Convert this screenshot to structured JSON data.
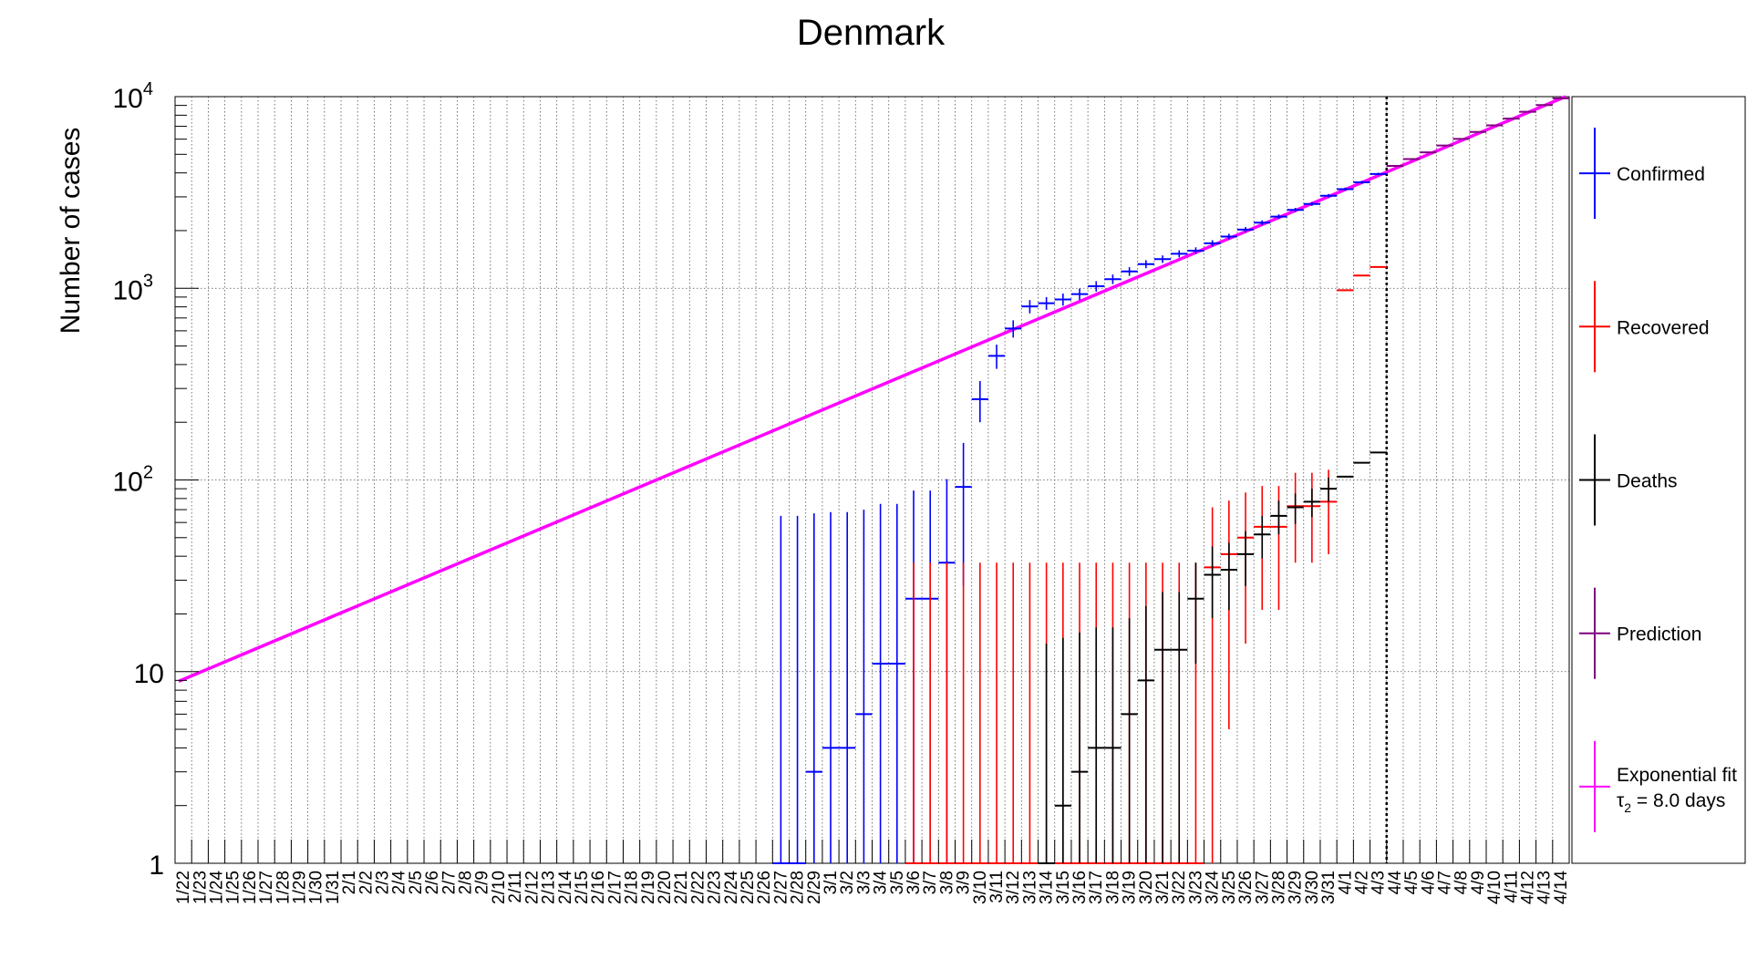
{
  "chart_data": {
    "type": "scatter",
    "title": "Denmark",
    "xlabel": "",
    "ylabel": "Number of cases",
    "y_scale": "log",
    "ylim": [
      1,
      10000
    ],
    "y_tick_labels": [
      {
        "value": 1,
        "label": "1"
      },
      {
        "value": 10,
        "label": "10"
      },
      {
        "value": 100,
        "label": "10",
        "exp": "2"
      },
      {
        "value": 1000,
        "label": "10",
        "exp": "3"
      },
      {
        "value": 10000,
        "label": "10",
        "exp": "4"
      }
    ],
    "grid": true,
    "legend_position": "right",
    "categories": [
      "1/22",
      "1/23",
      "1/24",
      "1/25",
      "1/26",
      "1/27",
      "1/28",
      "1/29",
      "1/30",
      "1/31",
      "2/1",
      "2/2",
      "2/3",
      "2/4",
      "2/5",
      "2/6",
      "2/7",
      "2/8",
      "2/9",
      "2/10",
      "2/11",
      "2/12",
      "2/13",
      "2/14",
      "2/15",
      "2/16",
      "2/17",
      "2/18",
      "2/19",
      "2/20",
      "2/21",
      "2/22",
      "2/23",
      "2/24",
      "2/25",
      "2/26",
      "2/27",
      "2/28",
      "2/29",
      "3/1",
      "3/2",
      "3/3",
      "3/4",
      "3/5",
      "3/6",
      "3/7",
      "3/8",
      "3/9",
      "3/10",
      "3/11",
      "3/12",
      "3/13",
      "3/14",
      "3/15",
      "3/16",
      "3/17",
      "3/18",
      "3/19",
      "3/20",
      "3/21",
      "3/22",
      "3/23",
      "3/24",
      "3/25",
      "3/26",
      "3/27",
      "3/28",
      "3/29",
      "3/30",
      "3/31",
      "4/1",
      "4/2",
      "4/3",
      "4/4",
      "4/5",
      "4/6",
      "4/7",
      "4/8",
      "4/9",
      "4/10",
      "4/11",
      "4/12",
      "4/13",
      "4/14"
    ],
    "prediction_start": "4/4",
    "series": [
      {
        "name": "Confirmed",
        "color": "#0000ff",
        "points": [
          {
            "x": "2/27",
            "y": 1,
            "lo": 1,
            "hi": 65
          },
          {
            "x": "2/28",
            "y": 1,
            "lo": 1,
            "hi": 65
          },
          {
            "x": "2/29",
            "y": 3,
            "lo": 1,
            "hi": 67
          },
          {
            "x": "3/1",
            "y": 4,
            "lo": 1,
            "hi": 68
          },
          {
            "x": "3/2",
            "y": 4,
            "lo": 1,
            "hi": 68
          },
          {
            "x": "3/3",
            "y": 6,
            "lo": 1,
            "hi": 70
          },
          {
            "x": "3/4",
            "y": 11,
            "lo": 1,
            "hi": 75
          },
          {
            "x": "3/5",
            "y": 11,
            "lo": 1,
            "hi": 75
          },
          {
            "x": "3/6",
            "y": 24,
            "lo": 1,
            "hi": 88
          },
          {
            "x": "3/7",
            "y": 24,
            "lo": 1,
            "hi": 88
          },
          {
            "x": "3/8",
            "y": 37,
            "lo": 1,
            "hi": 101
          },
          {
            "x": "3/9",
            "y": 92,
            "lo": 28,
            "hi": 156
          },
          {
            "x": "3/10",
            "y": 264,
            "lo": 200,
            "hi": 328
          },
          {
            "x": "3/11",
            "y": 444,
            "lo": 380,
            "hi": 508
          },
          {
            "x": "3/12",
            "y": 617,
            "lo": 553,
            "hi": 681
          },
          {
            "x": "3/13",
            "y": 804,
            "lo": 740,
            "hi": 868
          },
          {
            "x": "3/14",
            "y": 836,
            "lo": 772,
            "hi": 900
          },
          {
            "x": "3/15",
            "y": 875,
            "lo": 811,
            "hi": 939
          },
          {
            "x": "3/16",
            "y": 933,
            "lo": 869,
            "hi": 997
          },
          {
            "x": "3/17",
            "y": 1025,
            "lo": 961,
            "hi": 1089
          },
          {
            "x": "3/18",
            "y": 1116,
            "lo": 1052,
            "hi": 1180
          },
          {
            "x": "3/19",
            "y": 1225,
            "lo": 1161,
            "hi": 1289
          },
          {
            "x": "3/20",
            "y": 1337,
            "lo": 1273,
            "hi": 1401
          },
          {
            "x": "3/21",
            "y": 1420,
            "lo": 1356,
            "hi": 1484
          },
          {
            "x": "3/22",
            "y": 1514,
            "lo": 1450,
            "hi": 1578
          },
          {
            "x": "3/23",
            "y": 1572,
            "lo": 1508,
            "hi": 1636
          },
          {
            "x": "3/24",
            "y": 1718,
            "lo": 1654,
            "hi": 1782
          },
          {
            "x": "3/25",
            "y": 1862,
            "lo": 1798,
            "hi": 1926
          },
          {
            "x": "3/26",
            "y": 2023,
            "lo": 1959,
            "hi": 2087
          },
          {
            "x": "3/27",
            "y": 2200,
            "lo": 2136,
            "hi": 2264
          },
          {
            "x": "3/28",
            "y": 2366,
            "lo": 2302,
            "hi": 2430
          },
          {
            "x": "3/29",
            "y": 2564,
            "lo": 2500,
            "hi": 2628
          },
          {
            "x": "3/30",
            "y": 2755,
            "lo": 2691,
            "hi": 2819
          },
          {
            "x": "3/31",
            "y": 3039,
            "lo": 2975,
            "hi": 3103
          },
          {
            "x": "4/1",
            "y": 3290,
            "lo": 3226,
            "hi": 3354
          },
          {
            "x": "4/2",
            "y": 3573,
            "lo": 3509,
            "hi": 3637
          },
          {
            "x": "4/3",
            "y": 3946,
            "lo": 3882,
            "hi": 4010
          }
        ]
      },
      {
        "name": "Recovered",
        "color": "#ff0000",
        "points": [
          {
            "x": "3/6",
            "y": 1,
            "lo": 1,
            "hi": 37
          },
          {
            "x": "3/7",
            "y": 1,
            "lo": 1,
            "hi": 37
          },
          {
            "x": "3/8",
            "y": 1,
            "lo": 1,
            "hi": 37
          },
          {
            "x": "3/9",
            "y": 1,
            "lo": 1,
            "hi": 37
          },
          {
            "x": "3/10",
            "y": 1,
            "lo": 1,
            "hi": 37
          },
          {
            "x": "3/11",
            "y": 1,
            "lo": 1,
            "hi": 37
          },
          {
            "x": "3/12",
            "y": 1,
            "lo": 1,
            "hi": 37
          },
          {
            "x": "3/13",
            "y": 1,
            "lo": 1,
            "hi": 37
          },
          {
            "x": "3/14",
            "y": 1,
            "lo": 1,
            "hi": 37
          },
          {
            "x": "3/15",
            "y": 1,
            "lo": 1,
            "hi": 37
          },
          {
            "x": "3/16",
            "y": 1,
            "lo": 1,
            "hi": 37
          },
          {
            "x": "3/17",
            "y": 1,
            "lo": 1,
            "hi": 37
          },
          {
            "x": "3/18",
            "y": 1,
            "lo": 1,
            "hi": 37
          },
          {
            "x": "3/19",
            "y": 1,
            "lo": 1,
            "hi": 37
          },
          {
            "x": "3/20",
            "y": 1,
            "lo": 1,
            "hi": 37
          },
          {
            "x": "3/21",
            "y": 1,
            "lo": 1,
            "hi": 37
          },
          {
            "x": "3/22",
            "y": 1,
            "lo": 1,
            "hi": 37
          },
          {
            "x": "3/23",
            "y": 1,
            "lo": 1,
            "hi": 37
          },
          {
            "x": "3/24",
            "y": 35,
            "lo": 1,
            "hi": 72
          },
          {
            "x": "3/25",
            "y": 41,
            "lo": 5,
            "hi": 78
          },
          {
            "x": "3/26",
            "y": 50,
            "lo": 14,
            "hi": 86
          },
          {
            "x": "3/27",
            "y": 57,
            "lo": 21,
            "hi": 93
          },
          {
            "x": "3/28",
            "y": 57,
            "lo": 21,
            "hi": 93
          },
          {
            "x": "3/29",
            "y": 73,
            "lo": 37,
            "hi": 109
          },
          {
            "x": "3/30",
            "y": 73,
            "lo": 37,
            "hi": 109
          },
          {
            "x": "3/31",
            "y": 77,
            "lo": 41,
            "hi": 113
          },
          {
            "x": "4/1",
            "y": 977,
            "lo": 977,
            "hi": 977
          },
          {
            "x": "4/2",
            "y": 1165,
            "lo": 1165,
            "hi": 1165
          },
          {
            "x": "4/3",
            "y": 1291,
            "lo": 1291,
            "hi": 1291
          }
        ]
      },
      {
        "name": "Deaths",
        "color": "#000000",
        "points": [
          {
            "x": "3/14",
            "y": 1,
            "lo": 1,
            "hi": 14
          },
          {
            "x": "3/15",
            "y": 2,
            "lo": 1,
            "hi": 15
          },
          {
            "x": "3/16",
            "y": 3,
            "lo": 1,
            "hi": 16
          },
          {
            "x": "3/17",
            "y": 4,
            "lo": 1,
            "hi": 17
          },
          {
            "x": "3/18",
            "y": 4,
            "lo": 1,
            "hi": 17
          },
          {
            "x": "3/19",
            "y": 6,
            "lo": 1,
            "hi": 19
          },
          {
            "x": "3/20",
            "y": 9,
            "lo": 1,
            "hi": 22
          },
          {
            "x": "3/21",
            "y": 13,
            "lo": 1,
            "hi": 26
          },
          {
            "x": "3/22",
            "y": 13,
            "lo": 1,
            "hi": 26
          },
          {
            "x": "3/23",
            "y": 24,
            "lo": 11,
            "hi": 37
          },
          {
            "x": "3/24",
            "y": 32,
            "lo": 19,
            "hi": 45
          },
          {
            "x": "3/25",
            "y": 34,
            "lo": 21,
            "hi": 47
          },
          {
            "x": "3/26",
            "y": 41,
            "lo": 28,
            "hi": 54
          },
          {
            "x": "3/27",
            "y": 52,
            "lo": 39,
            "hi": 65
          },
          {
            "x": "3/28",
            "y": 65,
            "lo": 52,
            "hi": 78
          },
          {
            "x": "3/29",
            "y": 72,
            "lo": 59,
            "hi": 85
          },
          {
            "x": "3/30",
            "y": 77,
            "lo": 64,
            "hi": 90
          },
          {
            "x": "3/31",
            "y": 90,
            "lo": 77,
            "hi": 103
          },
          {
            "x": "4/1",
            "y": 104,
            "lo": 104,
            "hi": 104
          },
          {
            "x": "4/2",
            "y": 123,
            "lo": 123,
            "hi": 123
          },
          {
            "x": "4/3",
            "y": 139,
            "lo": 139,
            "hi": 139
          }
        ]
      },
      {
        "name": "Prediction",
        "color": "#800080",
        "points": [
          {
            "x": "4/4",
            "y": 4350
          },
          {
            "x": "4/5",
            "y": 4720
          },
          {
            "x": "4/6",
            "y": 5120
          },
          {
            "x": "4/7",
            "y": 5560
          },
          {
            "x": "4/8",
            "y": 6020
          },
          {
            "x": "4/9",
            "y": 6540
          },
          {
            "x": "4/10",
            "y": 7080
          },
          {
            "x": "4/11",
            "y": 7680
          },
          {
            "x": "4/12",
            "y": 8340
          },
          {
            "x": "4/13",
            "y": 9040
          },
          {
            "x": "4/14",
            "y": 9800
          }
        ]
      },
      {
        "name": "Exponential fit",
        "color": "#ff00ff",
        "fit": {
          "x_start": "1/22",
          "y_start": 8.9,
          "x_end": "4/14",
          "y_end": 10000
        }
      }
    ],
    "legend": [
      {
        "label": "Confirmed",
        "color": "#0000ff"
      },
      {
        "label": "Recovered",
        "color": "#ff0000"
      },
      {
        "label": "Deaths",
        "color": "#000000"
      },
      {
        "label": "Prediction",
        "color": "#800080"
      },
      {
        "label": "Exponential fit",
        "sublabel_symbol": "τ",
        "sublabel_sub": "2",
        "sublabel_rest": " = 8.0 days",
        "color": "#ff00ff"
      }
    ]
  }
}
